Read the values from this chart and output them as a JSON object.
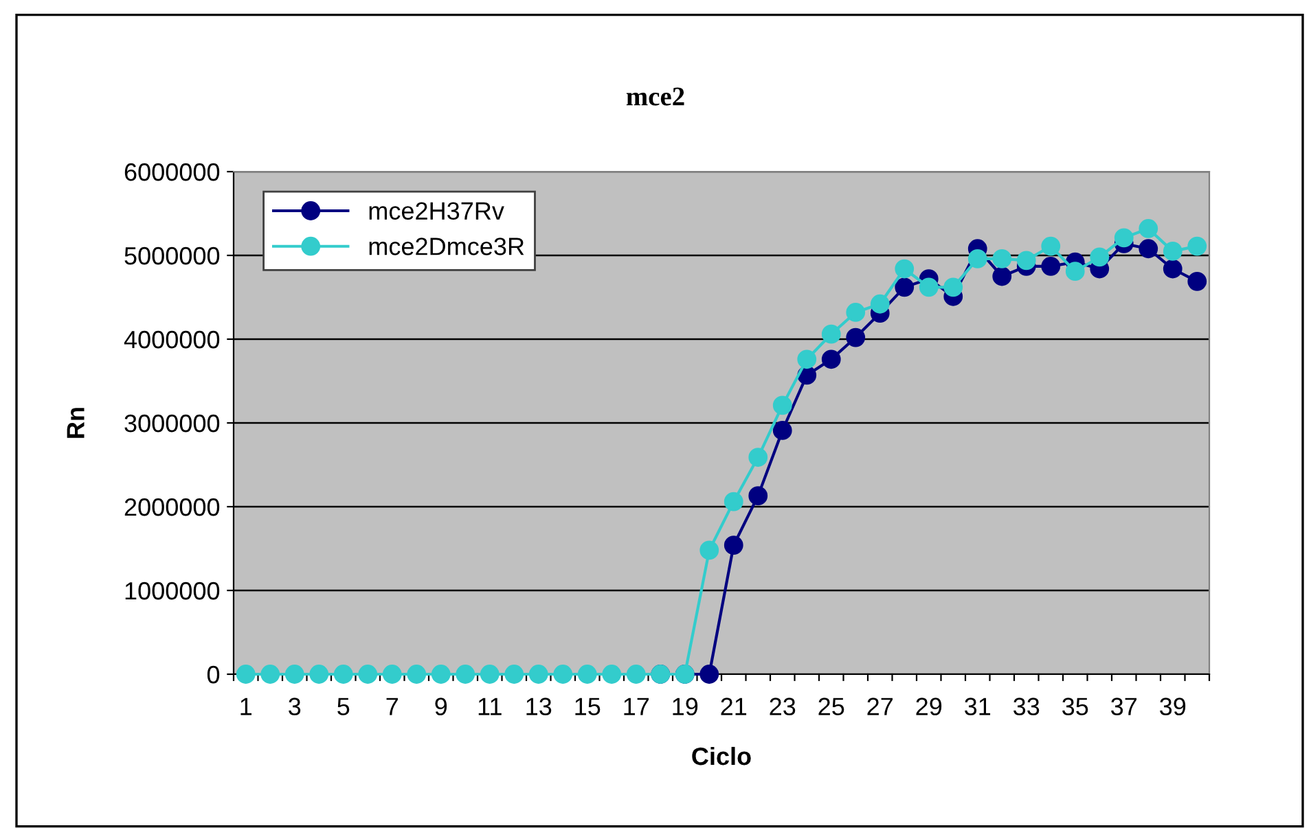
{
  "chart_data": {
    "type": "line",
    "title": "mce2",
    "xlabel": "Ciclo",
    "ylabel": "Rn",
    "categories": [
      "1",
      null,
      "3",
      null,
      "5",
      null,
      "7",
      null,
      "9",
      null,
      "11",
      null,
      "13",
      null,
      "15",
      null,
      "17",
      null,
      "19",
      null,
      "21",
      null,
      "23",
      null,
      "25",
      null,
      "27",
      null,
      "29",
      null,
      "31",
      null,
      "33",
      null,
      "35",
      null,
      "37",
      null,
      "39",
      null
    ],
    "series": [
      {
        "name": "mce2H37Rv",
        "color": "#000080",
        "values": [
          null,
          null,
          null,
          null,
          null,
          null,
          null,
          null,
          null,
          null,
          null,
          null,
          null,
          null,
          null,
          null,
          null,
          0,
          0,
          0,
          1540000,
          2130000,
          2910000,
          3570000,
          3760000,
          4020000,
          4310000,
          4620000,
          4720000,
          4510000,
          5080000,
          4750000,
          4870000,
          4870000,
          4920000,
          4840000,
          5140000,
          5080000,
          4840000,
          4690000
        ]
      },
      {
        "name": "mce2Dmce3R",
        "color": "#33cccc",
        "values": [
          0,
          0,
          0,
          0,
          0,
          0,
          0,
          0,
          0,
          0,
          0,
          0,
          0,
          0,
          0,
          0,
          0,
          0,
          0,
          1480000,
          2060000,
          2590000,
          3210000,
          3760000,
          4060000,
          4320000,
          4420000,
          4840000,
          4620000,
          4620000,
          4960000,
          4960000,
          4940000,
          5110000,
          4810000,
          4980000,
          5210000,
          5320000,
          5050000,
          5110000
        ]
      }
    ],
    "ylim": [
      0,
      6000000
    ],
    "yticks": [
      0,
      1000000,
      2000000,
      3000000,
      4000000,
      5000000,
      6000000
    ],
    "grid": "y",
    "legend": "top left",
    "marker": "circle",
    "line_style": "solid"
  }
}
